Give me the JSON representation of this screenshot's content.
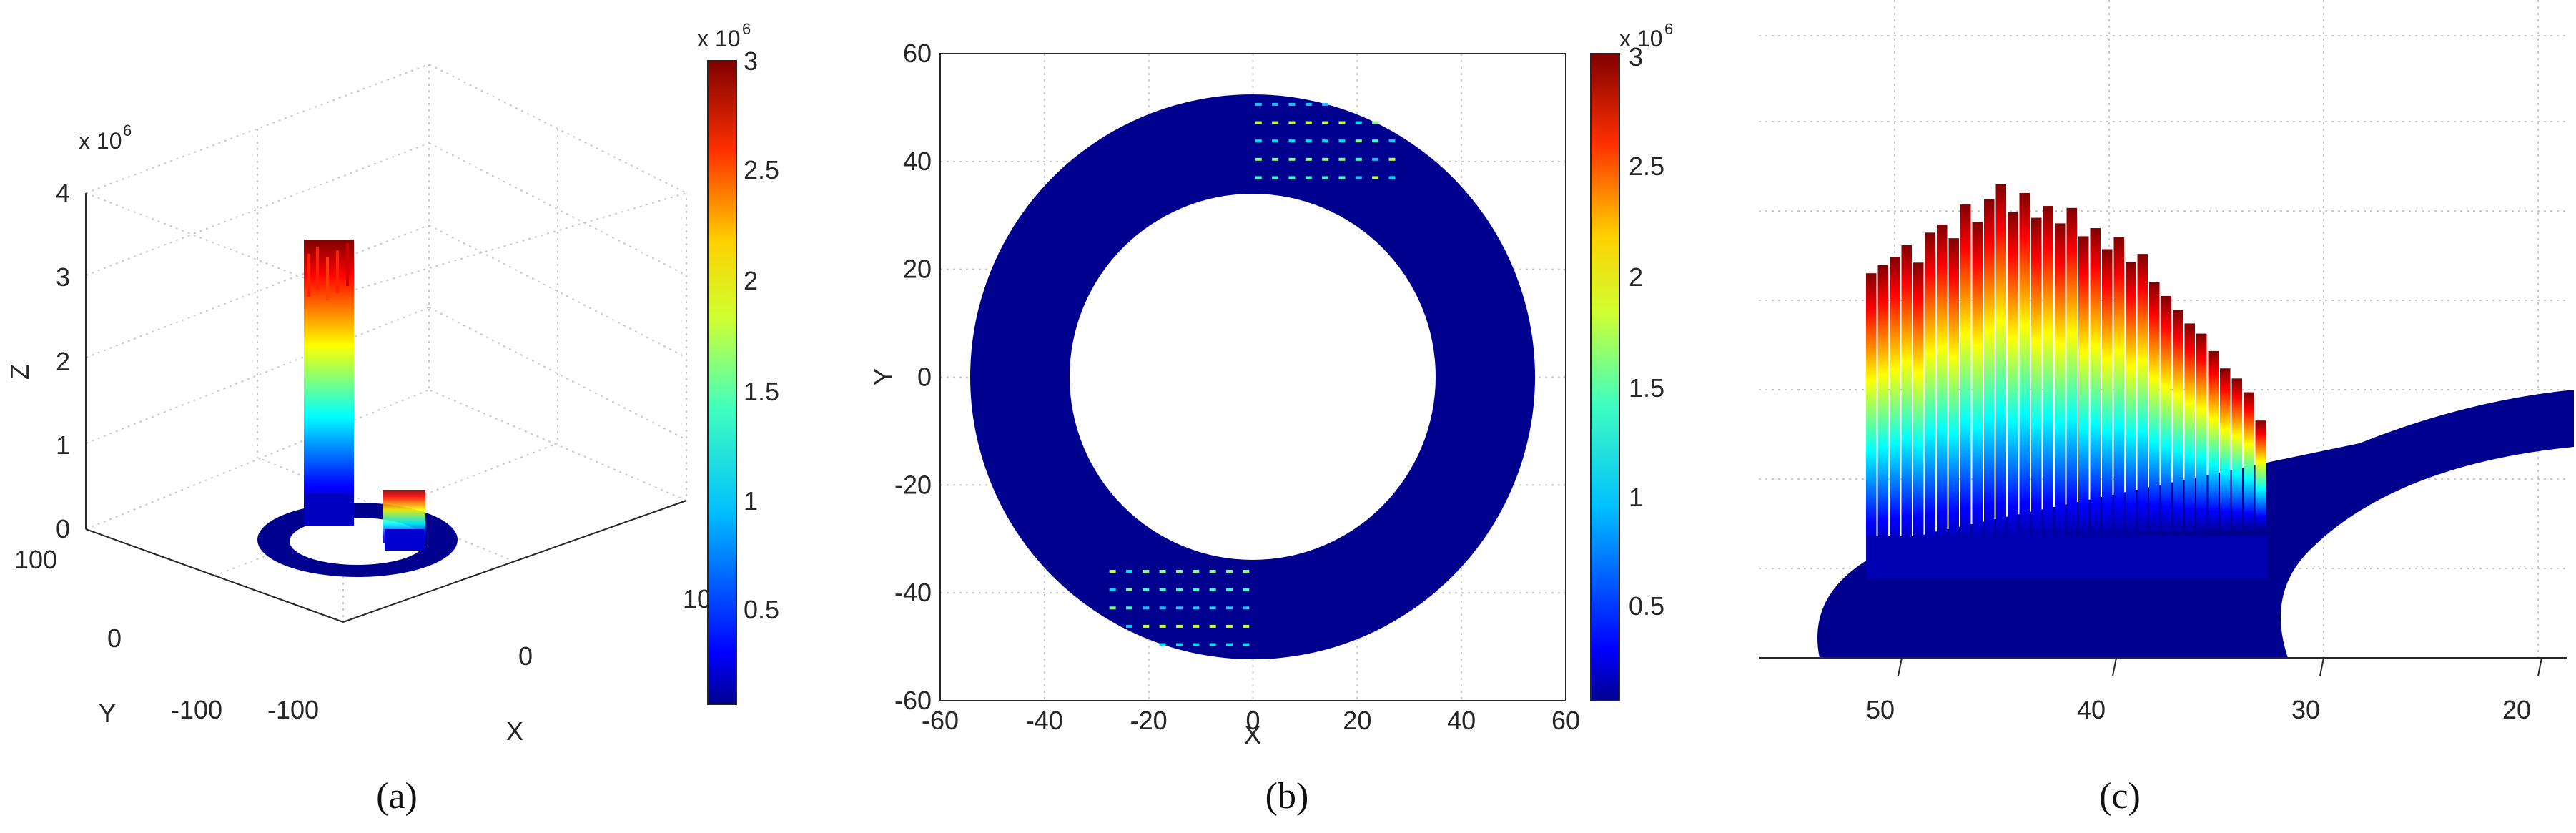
{
  "figure": {
    "panels": [
      {
        "id": "a",
        "caption": "(a)"
      },
      {
        "id": "b",
        "caption": "(b)"
      },
      {
        "id": "c",
        "caption": "(c)"
      }
    ]
  },
  "colorbar": {
    "colormap": "jet",
    "ticks": [
      "0.5",
      "1",
      "1.5",
      "2",
      "2.5",
      "3"
    ],
    "exponent": "x 10",
    "exponent_power": "6",
    "range": [
      0.1,
      3.0
    ]
  },
  "chart_data": [
    {
      "id": "a",
      "type": "surface3d",
      "xlabel": "X",
      "ylabel": "Y",
      "zlabel": "Z",
      "xticks": [
        "-100",
        "0",
        "100"
      ],
      "yticks": [
        "-100",
        "0",
        "100"
      ],
      "zticks": [
        "0",
        "1",
        "2",
        "3",
        "4"
      ],
      "z_exponent": "x 10",
      "z_exponent_power": "6",
      "xlim": [
        -100,
        100
      ],
      "ylim": [
        -100,
        100
      ],
      "zlim": [
        0,
        4
      ],
      "ring": {
        "inner_radius": 35,
        "outer_radius": 54
      },
      "peak_z_millions": 3.0,
      "colormap": "jet"
    },
    {
      "id": "b",
      "type": "heatmap",
      "xlabel": "X",
      "ylabel": "Y",
      "xticks": [
        "-60",
        "-40",
        "-20",
        "0",
        "20",
        "40",
        "60"
      ],
      "yticks": [
        "-60",
        "-40",
        "-20",
        "0",
        "20",
        "40",
        "60"
      ],
      "xlim": [
        -60,
        60
      ],
      "ylim": [
        -60,
        60
      ],
      "grid": true,
      "ring": {
        "inner_radius": 35,
        "outer_radius": 54
      },
      "hot_regions": [
        {
          "quadrant": "upper-right",
          "x_range": [
            0,
            28
          ],
          "y_range": [
            36,
            54
          ]
        },
        {
          "quadrant": "lower-left",
          "x_range": [
            -28,
            0
          ],
          "y_range": [
            -54,
            -36
          ]
        }
      ],
      "colormap": "jet"
    },
    {
      "id": "c",
      "type": "surface3d",
      "xticks": [
        "50",
        "40",
        "30",
        "20"
      ],
      "colormap": "jet"
    }
  ]
}
